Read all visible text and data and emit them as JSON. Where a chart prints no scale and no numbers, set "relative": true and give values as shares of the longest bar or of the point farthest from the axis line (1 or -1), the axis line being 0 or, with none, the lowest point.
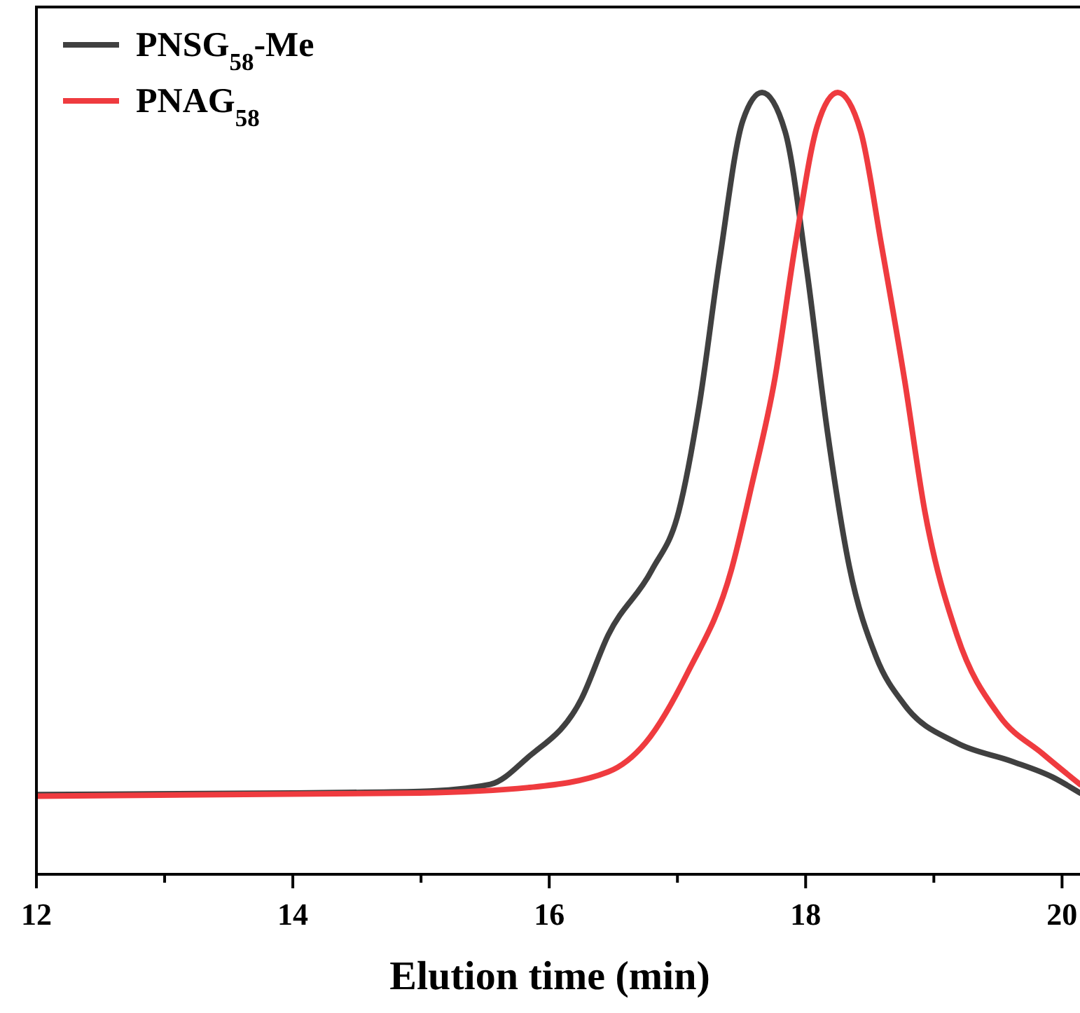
{
  "chart_data": {
    "type": "line",
    "relative": true,
    "xlabel": "Elution time (min)",
    "xlim": [
      12,
      20.14
    ],
    "xticks": [
      12,
      {
        "value": 13,
        "label": null
      },
      14,
      {
        "value": 15,
        "label": null
      },
      16,
      {
        "value": 17,
        "label": null
      },
      18,
      {
        "value": 19,
        "label": null
      },
      20
    ],
    "legend": "top left",
    "grid": false,
    "marker": "none",
    "line_style": "solid",
    "series": [
      {
        "name": "PNSG$_{58}$-Me",
        "color": "#404040",
        "x": [
          12,
          14,
          14.99,
          15.54,
          15.83,
          16.25,
          16.46,
          16.8,
          17.01,
          17.17,
          17.33,
          17.51,
          17.66,
          17.84,
          18.01,
          18.17,
          18.34,
          18.55,
          18.77,
          19.18,
          19.6,
          19.93,
          20.14
        ],
        "values": [
          0.102,
          0.104,
          0.106,
          0.115,
          0.149,
          0.224,
          0.306,
          0.389,
          0.464,
          0.6,
          0.787,
          0.964,
          1,
          0.95,
          0.772,
          0.566,
          0.394,
          0.278,
          0.217,
          0.168,
          0.145,
          0.124,
          0.104
        ]
      },
      {
        "name": "PNAG$_{58}$",
        "color": "#ef3b3f",
        "x": [
          12,
          14.99,
          15.84,
          16.46,
          16.75,
          17.08,
          17.42,
          17.58,
          17.76,
          17.92,
          18.09,
          18.25,
          18.43,
          18.59,
          18.77,
          18.93,
          19.18,
          19.51,
          19.85,
          20.14
        ],
        "values": [
          0.1,
          0.104,
          0.111,
          0.131,
          0.168,
          0.258,
          0.389,
          0.498,
          0.634,
          0.806,
          0.957,
          1,
          0.95,
          0.806,
          0.634,
          0.464,
          0.306,
          0.203,
          0.154,
          0.115
        ]
      }
    ]
  }
}
